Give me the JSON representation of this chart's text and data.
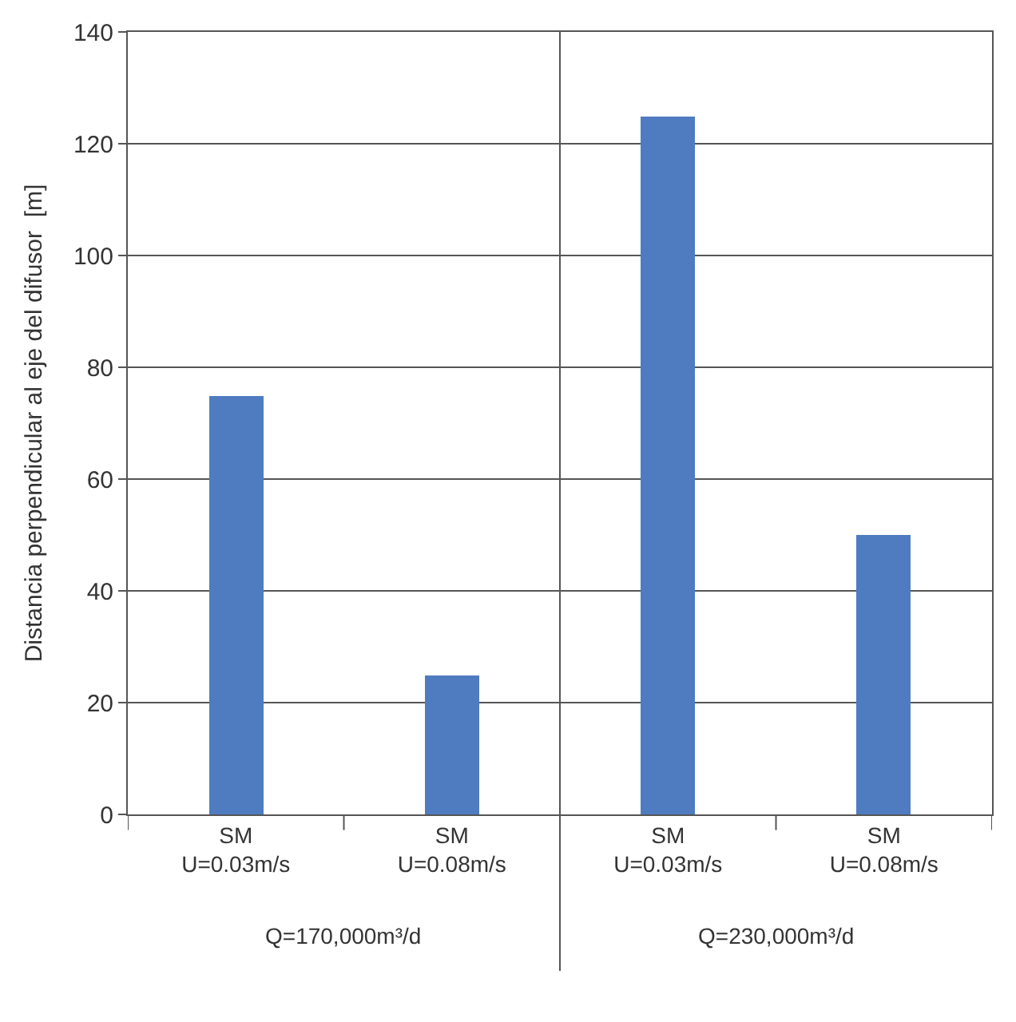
{
  "chart_data": {
    "type": "bar",
    "ylabel": "Distancia perpendicular al eje del difusor  [m]",
    "categories": [
      "SM\nU=0.03m/s",
      "SM\nU=0.08m/s",
      "SM\nU=0.03m/s",
      "SM\nU=0.08m/s"
    ],
    "values": [
      75,
      25,
      125,
      50
    ],
    "color": "#4f7cc0",
    "ylim": [
      0,
      140
    ],
    "yticks": [
      0,
      20,
      40,
      60,
      80,
      100,
      120,
      140
    ],
    "grid": "y",
    "legend": false,
    "annotations": [
      "Q=170,000m³/d",
      "Q=230,000m³/d"
    ]
  }
}
